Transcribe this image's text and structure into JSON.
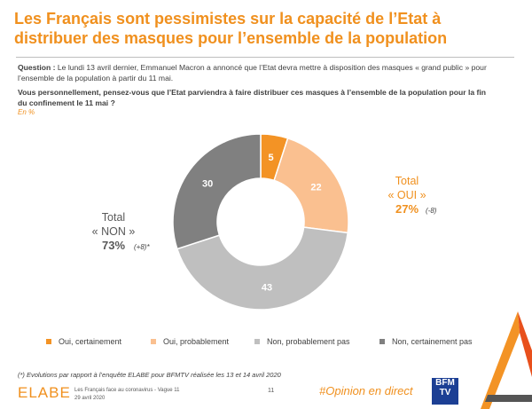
{
  "header": {
    "title": "Les Français sont pessimistes sur la capacité de l’Etat à distribuer des masques pour l’ensemble de la population"
  },
  "question": {
    "label": "Question :",
    "text": " Le lundi 13 avril dernier, Emmanuel Macron a annoncé que l’Etat devra mettre à disposition des masques « grand public » pour l’ensemble de la population à partir du 11 mai.",
    "prompt": "Vous personnellement, pensez-vous que l’Etat parviendra à faire distribuer ces masques à l’ensemble de la population pour la fin du confinement le 11 mai ?",
    "unit": "En %"
  },
  "chart_data": {
    "type": "pie",
    "donut": true,
    "title": "",
    "categories": [
      "Oui, certainement",
      "Oui, probablement",
      "Non, probablement pas",
      "Non, certainement pas"
    ],
    "values": [
      5,
      22,
      43,
      30
    ],
    "colors": [
      "#f39325",
      "#fac090",
      "#bfbfbf",
      "#808080"
    ],
    "legend_position": "bottom",
    "totals": [
      {
        "label": "Total",
        "name": "« OUI »",
        "value": "27%",
        "evolution": "(-8)"
      },
      {
        "label": "Total",
        "name": "« NON »",
        "value": "73%",
        "evolution": "(+8)*"
      }
    ]
  },
  "footer": {
    "note": "(*) Evolutions par rapport à l’enquête ELABE pour BFMTV réalisée les 13 et 14 avril 2020",
    "logo": "ELABE",
    "study": "Les Français face au coronavirus - Vague 11",
    "date": "29 avril 2020",
    "page": "11",
    "hashtag": "#Opinion en direct",
    "brand_line1": "BFM",
    "brand_line2": "TV"
  }
}
